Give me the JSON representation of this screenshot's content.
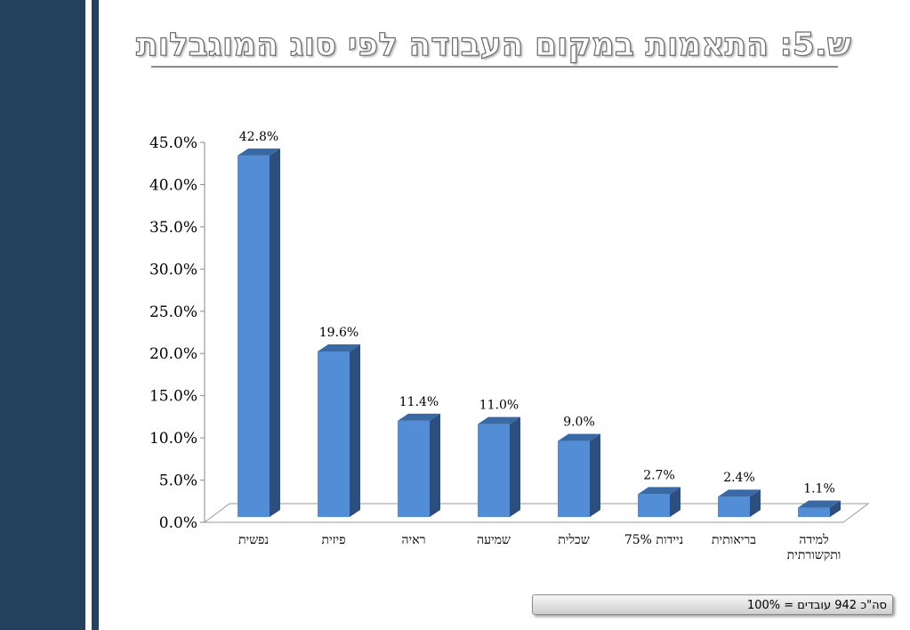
{
  "title": "ש.5: התאמות במקום העבודה לפי סוג המוגבלות",
  "footer_note": "סה\"כ 942 עובדים = 100%",
  "colors": {
    "sidebar": "#23405f",
    "bar_front": "#538dd5",
    "bar_side": "#2c4f7f",
    "bar_top": "#3a6aa6"
  },
  "chart_data": {
    "type": "bar",
    "title": "",
    "xlabel": "",
    "ylabel": "",
    "ylim": [
      0,
      45
    ],
    "yticks": [
      "0.0%",
      "5.0%",
      "10.0%",
      "15.0%",
      "20.0%",
      "25.0%",
      "30.0%",
      "35.0%",
      "40.0%",
      "45.0%"
    ],
    "categories": [
      [
        "נפשית"
      ],
      [
        "פיזית"
      ],
      [
        "ראיה"
      ],
      [
        "שמיעה"
      ],
      [
        "שכלית"
      ],
      [
        "ניידות 75%"
      ],
      [
        "בריאותית"
      ],
      [
        "למידה",
        "ותקשורתית"
      ]
    ],
    "values": [
      42.8,
      19.6,
      11.4,
      11.0,
      9.0,
      2.7,
      2.4,
      1.1
    ],
    "data_labels": [
      "42.8%",
      "19.6%",
      "11.4%",
      "11.0%",
      "9.0%",
      "2.7%",
      "2.4%",
      "1.1%"
    ],
    "grid": false,
    "legend": "none",
    "style": "3d-column"
  }
}
